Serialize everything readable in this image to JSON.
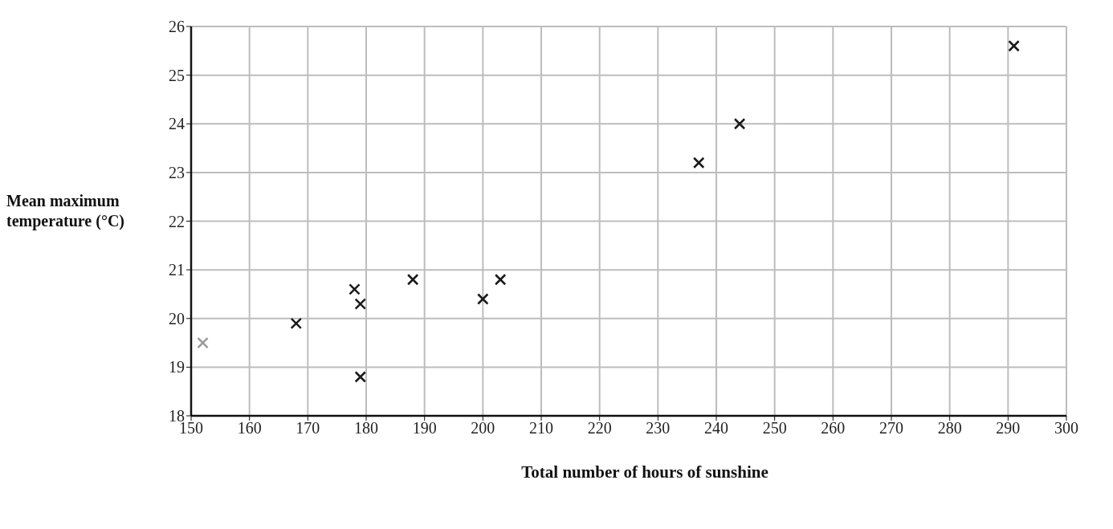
{
  "chart_data": {
    "type": "scatter",
    "xlabel": "Total number of hours of sunshine",
    "ylabel": "Mean maximum temperature (°C)",
    "x": [
      152,
      168,
      178,
      179,
      179,
      188,
      200,
      203,
      237,
      244,
      291
    ],
    "values": [
      19.5,
      19.9,
      20.6,
      20.3,
      18.8,
      20.8,
      20.4,
      20.8,
      23.2,
      24.0,
      25.6
    ],
    "colors": [
      "#9a9a9a",
      "#1a1a1a",
      "#1a1a1a",
      "#1a1a1a",
      "#1a1a1a",
      "#1a1a1a",
      "#1a1a1a",
      "#1a1a1a",
      "#1a1a1a",
      "#1a1a1a",
      "#1a1a1a"
    ],
    "xlim": [
      150,
      300
    ],
    "xticks": [
      150,
      160,
      170,
      180,
      190,
      200,
      210,
      220,
      230,
      240,
      250,
      260,
      270,
      280,
      290,
      300
    ],
    "ylim": [
      18,
      26
    ],
    "yticks": [
      18,
      19,
      20,
      21,
      22,
      23,
      24,
      25,
      26
    ],
    "grid": true,
    "marker": "cross"
  }
}
